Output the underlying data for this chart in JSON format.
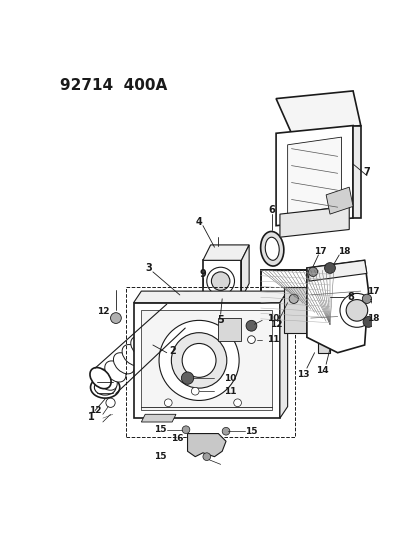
{
  "title": "92714  400A",
  "bg_color": "#ffffff",
  "line_color": "#1a1a1a",
  "fig_width": 4.14,
  "fig_height": 5.33,
  "dpi": 100
}
